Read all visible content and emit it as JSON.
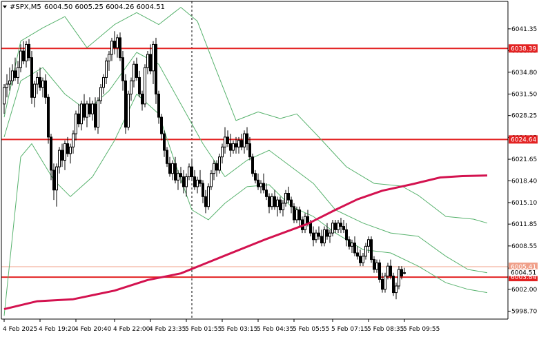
{
  "header": {
    "symbol": "#SPX,M5",
    "ohlc": "6004.50 6005.25 6004.26 6004.51",
    "menu_icon": "triangle-down-icon"
  },
  "chart_data": {
    "type": "candlestick",
    "symbol": "#SPX",
    "timeframe": "M5",
    "ylim": [
      5997.5,
      6045.5
    ],
    "y_ticks": [
      5998.7,
      6002.0,
      6005.2,
      6008.55,
      6011.85,
      6015.1,
      6018.4,
      6021.65,
      6024.95,
      6028.25,
      6031.5,
      6034.8,
      6038.05,
      6041.35
    ],
    "y_tick_labels": [
      "5998.70",
      "6002.00",
      "6005.20",
      "6008.55",
      "6011.85",
      "6015.10",
      "6018.40",
      "6021.65",
      "6024.95",
      "6028.25",
      "6031.50",
      "6034.80",
      "6038.05",
      "6041.35"
    ],
    "x_tick_labels": [
      "4 Feb 2025",
      "4 Feb 19:20",
      "4 Feb 20:40",
      "4 Feb 22:00",
      "4 Feb 23:35",
      "5 Feb 01:55",
      "5 Feb 03:15",
      "5 Feb 04:35",
      "5 Feb 05:55",
      "5 Feb 07:15",
      "5 Feb 08:35",
      "5 Feb 09:55"
    ],
    "horizontal_levels": [
      {
        "value": 6038.39,
        "label": "6038.39",
        "color": "#e32222"
      },
      {
        "value": 6024.64,
        "label": "6024.64",
        "color": "#e32222"
      },
      {
        "value": 6003.84,
        "label": "6003.84",
        "color": "#e32222"
      }
    ],
    "bid_line": {
      "value": 6005.41,
      "label": "6005.41",
      "color": "#f0a08a"
    },
    "current_price": {
      "value": 6004.51,
      "label": "6004.51"
    },
    "candles": [
      [
        6030.0,
        6033.0,
        6028.5,
        6032.5
      ],
      [
        6032.5,
        6034.5,
        6031.0,
        6033.0
      ],
      [
        6033.0,
        6035.5,
        6032.0,
        6033.5
      ],
      [
        6033.5,
        6036.0,
        6032.8,
        6035.0
      ],
      [
        6035.0,
        6037.0,
        6033.5,
        6034.0
      ],
      [
        6034.0,
        6036.5,
        6033.0,
        6035.5
      ],
      [
        6035.5,
        6039.0,
        6034.8,
        6038.0
      ],
      [
        6038.0,
        6039.5,
        6036.0,
        6036.5
      ],
      [
        6036.5,
        6039.5,
        6035.5,
        6039.0
      ],
      [
        6039.0,
        6039.8,
        6036.5,
        6037.0
      ],
      [
        6037.0,
        6038.0,
        6030.0,
        6031.0
      ],
      [
        6031.0,
        6033.5,
        6029.5,
        6033.0
      ],
      [
        6033.0,
        6034.8,
        6031.5,
        6034.0
      ],
      [
        6034.0,
        6035.5,
        6032.0,
        6032.5
      ],
      [
        6032.5,
        6034.0,
        6031.0,
        6033.5
      ],
      [
        6033.5,
        6034.5,
        6030.0,
        6031.0
      ],
      [
        6031.0,
        6031.5,
        6024.0,
        6025.0
      ],
      [
        6025.0,
        6025.5,
        6018.5,
        6020.0
      ],
      [
        6020.0,
        6021.0,
        6015.5,
        6017.0
      ],
      [
        6017.0,
        6021.0,
        6014.5,
        6020.5
      ],
      [
        6020.5,
        6023.5,
        6019.5,
        6023.0
      ],
      [
        6023.0,
        6024.0,
        6020.5,
        6021.5
      ],
      [
        6021.5,
        6024.5,
        6020.0,
        6024.0
      ],
      [
        6024.0,
        6025.0,
        6022.0,
        6022.5
      ],
      [
        6022.5,
        6024.0,
        6021.0,
        6023.5
      ],
      [
        6023.5,
        6026.0,
        6022.5,
        6025.5
      ],
      [
        6025.5,
        6029.0,
        6024.5,
        6028.5
      ],
      [
        6028.5,
        6030.0,
        6026.5,
        6027.0
      ],
      [
        6027.0,
        6030.5,
        6026.0,
        6030.0
      ],
      [
        6030.0,
        6031.5,
        6027.5,
        6028.0
      ],
      [
        6028.0,
        6030.5,
        6026.5,
        6030.0
      ],
      [
        6030.0,
        6031.0,
        6028.0,
        6028.5
      ],
      [
        6028.5,
        6030.5,
        6027.5,
        6030.0
      ],
      [
        6030.0,
        6031.0,
        6026.0,
        6026.5
      ],
      [
        6026.5,
        6031.0,
        6025.5,
        6030.5
      ],
      [
        6030.5,
        6033.0,
        6030.0,
        6032.5
      ],
      [
        6032.5,
        6034.5,
        6031.5,
        6034.0
      ],
      [
        6034.0,
        6037.0,
        6033.0,
        6036.5
      ],
      [
        6036.5,
        6038.0,
        6035.0,
        6037.5
      ],
      [
        6037.5,
        6040.0,
        6036.5,
        6039.5
      ],
      [
        6039.5,
        6041.0,
        6037.5,
        6038.5
      ],
      [
        6038.5,
        6040.5,
        6037.0,
        6040.0
      ],
      [
        6040.0,
        6040.8,
        6036.5,
        6037.0
      ],
      [
        6037.0,
        6038.0,
        6032.0,
        6033.5
      ],
      [
        6033.5,
        6034.5,
        6025.5,
        6026.5
      ],
      [
        6026.5,
        6032.0,
        6026.0,
        6031.5
      ],
      [
        6031.5,
        6034.0,
        6030.5,
        6033.5
      ],
      [
        6033.5,
        6036.5,
        6032.5,
        6036.0
      ],
      [
        6036.0,
        6037.0,
        6033.5,
        6034.0
      ],
      [
        6034.0,
        6035.0,
        6031.0,
        6031.5
      ],
      [
        6031.5,
        6032.0,
        6029.0,
        6030.0
      ],
      [
        6030.0,
        6036.0,
        6029.5,
        6035.5
      ],
      [
        6035.5,
        6038.0,
        6034.5,
        6037.5
      ],
      [
        6037.5,
        6039.0,
        6034.5,
        6035.0
      ],
      [
        6035.0,
        6039.5,
        6033.0,
        6039.0
      ],
      [
        6039.0,
        6040.0,
        6030.0,
        6031.5
      ],
      [
        6031.5,
        6032.0,
        6027.0,
        6028.0
      ],
      [
        6028.0,
        6028.5,
        6024.5,
        6025.5
      ],
      [
        6025.5,
        6026.0,
        6022.0,
        6023.0
      ],
      [
        6023.0,
        6023.5,
        6020.5,
        6021.0
      ],
      [
        6021.0,
        6022.0,
        6019.0,
        6019.5
      ],
      [
        6019.5,
        6021.5,
        6018.5,
        6021.0
      ],
      [
        6021.0,
        6022.0,
        6018.0,
        6018.5
      ],
      [
        6018.5,
        6020.0,
        6017.0,
        6019.5
      ],
      [
        6019.5,
        6020.5,
        6018.0,
        6019.0
      ],
      [
        6019.0,
        6020.0,
        6016.5,
        6017.5
      ],
      [
        6017.5,
        6019.5,
        6016.0,
        6019.0
      ],
      [
        6019.0,
        6021.0,
        6018.5,
        6020.5
      ],
      [
        6020.5,
        6021.5,
        6018.5,
        6019.0
      ],
      [
        6019.0,
        6020.0,
        6017.0,
        6017.5
      ],
      [
        6017.5,
        6019.0,
        6016.5,
        6018.5
      ],
      [
        6018.5,
        6020.0,
        6017.5,
        6018.0
      ],
      [
        6018.0,
        6018.5,
        6015.0,
        6016.0
      ],
      [
        6016.0,
        6017.0,
        6013.5,
        6014.5
      ],
      [
        6014.5,
        6018.0,
        6014.0,
        6017.5
      ],
      [
        6017.5,
        6020.0,
        6017.0,
        6019.5
      ],
      [
        6019.5,
        6021.5,
        6018.5,
        6021.0
      ],
      [
        6021.0,
        6021.5,
        6019.0,
        6020.0
      ],
      [
        6020.0,
        6022.5,
        6019.5,
        6022.0
      ],
      [
        6022.0,
        6024.0,
        6021.0,
        6023.5
      ],
      [
        6023.5,
        6026.5,
        6022.5,
        6025.0
      ],
      [
        6025.0,
        6026.0,
        6023.5,
        6024.0
      ],
      [
        6024.0,
        6025.5,
        6022.0,
        6023.0
      ],
      [
        6023.0,
        6024.5,
        6022.5,
        6024.0
      ],
      [
        6024.0,
        6025.0,
        6022.5,
        6023.5
      ],
      [
        6023.5,
        6025.0,
        6022.5,
        6024.5
      ],
      [
        6024.5,
        6025.5,
        6023.0,
        6023.5
      ],
      [
        6023.5,
        6026.0,
        6022.5,
        6025.5
      ],
      [
        6025.5,
        6026.5,
        6023.0,
        6024.0
      ],
      [
        6024.0,
        6025.0,
        6021.5,
        6022.0
      ],
      [
        6022.0,
        6022.5,
        6019.0,
        6019.5
      ],
      [
        6019.5,
        6020.0,
        6018.0,
        6018.5
      ],
      [
        6018.5,
        6019.5,
        6017.0,
        6017.5
      ],
      [
        6017.5,
        6018.5,
        6016.5,
        6018.0
      ],
      [
        6018.0,
        6019.5,
        6016.5,
        6017.0
      ],
      [
        6017.0,
        6018.0,
        6015.5,
        6016.0
      ],
      [
        6016.0,
        6016.5,
        6013.5,
        6014.5
      ],
      [
        6014.5,
        6016.5,
        6014.0,
        6016.0
      ],
      [
        6016.0,
        6017.0,
        6014.0,
        6014.5
      ],
      [
        6014.5,
        6016.0,
        6013.0,
        6015.5
      ],
      [
        6015.5,
        6016.0,
        6013.5,
        6014.0
      ],
      [
        6014.0,
        6015.5,
        6013.0,
        6015.0
      ],
      [
        6015.0,
        6017.0,
        6014.5,
        6016.5
      ],
      [
        6016.5,
        6017.5,
        6015.0,
        6015.5
      ],
      [
        6015.5,
        6016.0,
        6013.5,
        6014.5
      ],
      [
        6014.5,
        6015.0,
        6012.0,
        6012.5
      ],
      [
        6012.5,
        6014.5,
        6012.0,
        6014.0
      ],
      [
        6014.0,
        6014.5,
        6011.5,
        6012.5
      ],
      [
        6012.5,
        6013.0,
        6010.5,
        6011.0
      ],
      [
        6011.0,
        6013.5,
        6010.5,
        6013.0
      ],
      [
        6013.0,
        6014.0,
        6011.5,
        6012.0
      ],
      [
        6012.0,
        6012.5,
        6010.0,
        6010.5
      ],
      [
        6010.5,
        6011.5,
        6008.5,
        6009.5
      ],
      [
        6009.5,
        6011.0,
        6009.0,
        6010.5
      ],
      [
        6010.5,
        6011.5,
        6009.5,
        6010.0
      ],
      [
        6010.0,
        6011.0,
        6008.5,
        6009.0
      ],
      [
        6009.0,
        6011.5,
        6008.5,
        6011.0
      ],
      [
        6011.0,
        6012.0,
        6009.5,
        6010.0
      ],
      [
        6010.0,
        6011.0,
        6009.0,
        6010.5
      ],
      [
        6010.5,
        6012.5,
        6010.0,
        6012.0
      ],
      [
        6012.0,
        6012.5,
        6010.5,
        6011.0
      ],
      [
        6011.0,
        6012.5,
        6010.5,
        6012.0
      ],
      [
        6012.0,
        6012.8,
        6010.5,
        6011.5
      ],
      [
        6011.5,
        6012.5,
        6010.5,
        6011.0
      ],
      [
        6011.0,
        6012.0,
        6008.5,
        6009.5
      ],
      [
        6009.5,
        6010.0,
        6008.0,
        6008.5
      ],
      [
        6008.5,
        6009.5,
        6007.5,
        6009.0
      ],
      [
        6009.0,
        6010.0,
        6007.0,
        6007.5
      ],
      [
        6007.5,
        6008.5,
        6006.5,
        6007.0
      ],
      [
        6007.0,
        6008.0,
        6005.5,
        6006.0
      ],
      [
        6006.0,
        6007.5,
        6005.5,
        6007.0
      ],
      [
        6007.0,
        6009.0,
        6006.5,
        6008.5
      ],
      [
        6008.5,
        6010.0,
        6007.5,
        6009.5
      ],
      [
        6009.5,
        6010.0,
        6006.0,
        6006.5
      ],
      [
        6006.5,
        6007.0,
        6004.5,
        6005.0
      ],
      [
        6005.0,
        6006.5,
        6004.5,
        6006.0
      ],
      [
        6006.0,
        6006.5,
        6003.0,
        6003.5
      ],
      [
        6003.5,
        6004.5,
        6001.5,
        6002.0
      ],
      [
        6002.0,
        6004.5,
        6001.5,
        6004.0
      ],
      [
        6004.0,
        6006.0,
        6003.5,
        6005.5
      ],
      [
        6005.5,
        6006.5,
        6003.5,
        6004.0
      ],
      [
        6004.0,
        6004.5,
        6001.0,
        6001.5
      ],
      [
        6001.5,
        6003.0,
        6000.5,
        6002.5
      ],
      [
        6002.5,
        6005.5,
        6002.0,
        6005.0
      ],
      [
        6005.0,
        6005.5,
        6003.5,
        6004.0
      ],
      [
        6004.5,
        6005.25,
        6004.26,
        6004.51
      ]
    ],
    "series": [
      {
        "name": "",
        "color": "#d3124f",
        "width": 3,
        "indicator": "moving-average-slow",
        "points": [
          [
            0,
            5999.0
          ],
          [
            12,
            6000.2
          ],
          [
            25,
            6000.5
          ],
          [
            40,
            6001.8
          ],
          [
            52,
            6003.4
          ],
          [
            64,
            6004.4
          ],
          [
            80,
            6007.1
          ],
          [
            95,
            6009.6
          ],
          [
            110,
            6011.9
          ],
          [
            120,
            6014.0
          ],
          [
            128,
            6015.6
          ],
          [
            137,
            6016.9
          ],
          [
            148,
            6017.9
          ],
          [
            158,
            6018.9
          ],
          [
            166,
            6019.1
          ],
          [
            175,
            6019.2
          ]
        ]
      },
      {
        "name": "",
        "color": "#57b26d",
        "width": 1,
        "indicator": "bollinger-upper",
        "points": [
          [
            0,
            6028.0
          ],
          [
            6,
            6039.5
          ],
          [
            14,
            6041.5
          ],
          [
            22,
            6043.2
          ],
          [
            30,
            6038.5
          ],
          [
            40,
            6042.0
          ],
          [
            48,
            6043.8
          ],
          [
            56,
            6042.0
          ],
          [
            64,
            6044.6
          ],
          [
            70,
            6042.5
          ],
          [
            76,
            6036.0
          ],
          [
            84,
            6027.5
          ],
          [
            92,
            6028.8
          ],
          [
            100,
            6027.8
          ],
          [
            106,
            6028.5
          ],
          [
            114,
            6025.0
          ],
          [
            124,
            6020.5
          ],
          [
            134,
            6018.0
          ],
          [
            144,
            6017.6
          ],
          [
            150,
            6016.2
          ],
          [
            160,
            6013.0
          ],
          [
            170,
            6012.6
          ],
          [
            175,
            6012.0
          ]
        ]
      },
      {
        "name": "",
        "color": "#57b26d",
        "width": 1,
        "indicator": "bollinger-middle",
        "points": [
          [
            0,
            6025.0
          ],
          [
            6,
            6033.5
          ],
          [
            14,
            6035.5
          ],
          [
            22,
            6031.5
          ],
          [
            30,
            6029.0
          ],
          [
            38,
            6032.0
          ],
          [
            48,
            6037.8
          ],
          [
            56,
            6036.0
          ],
          [
            64,
            6030.0
          ],
          [
            72,
            6024.0
          ],
          [
            80,
            6019.0
          ],
          [
            88,
            6021.5
          ],
          [
            96,
            6023.0
          ],
          [
            104,
            6020.5
          ],
          [
            112,
            6018.0
          ],
          [
            120,
            6014.0
          ],
          [
            130,
            6012.0
          ],
          [
            140,
            6010.5
          ],
          [
            150,
            6010.0
          ],
          [
            160,
            6007.0
          ],
          [
            168,
            6005.0
          ],
          [
            175,
            6004.5
          ]
        ]
      },
      {
        "name": "",
        "color": "#57b26d",
        "width": 1,
        "indicator": "bollinger-lower",
        "points": [
          [
            0,
            5998.0
          ],
          [
            6,
            6022.0
          ],
          [
            10,
            6024.0
          ],
          [
            18,
            6018.5
          ],
          [
            24,
            6016.0
          ],
          [
            32,
            6019.0
          ],
          [
            40,
            6024.5
          ],
          [
            48,
            6031.5
          ],
          [
            56,
            6028.5
          ],
          [
            62,
            6021.0
          ],
          [
            68,
            6014.0
          ],
          [
            74,
            6012.5
          ],
          [
            80,
            6015.0
          ],
          [
            88,
            6017.5
          ],
          [
            96,
            6017.8
          ],
          [
            104,
            6014.5
          ],
          [
            112,
            6013.0
          ],
          [
            120,
            6010.5
          ],
          [
            130,
            6008.0
          ],
          [
            140,
            6007.5
          ],
          [
            150,
            6005.5
          ],
          [
            160,
            6003.0
          ],
          [
            168,
            6002.0
          ],
          [
            175,
            6001.5
          ]
        ]
      }
    ],
    "grid": false,
    "vertical_marker_index": 68
  }
}
